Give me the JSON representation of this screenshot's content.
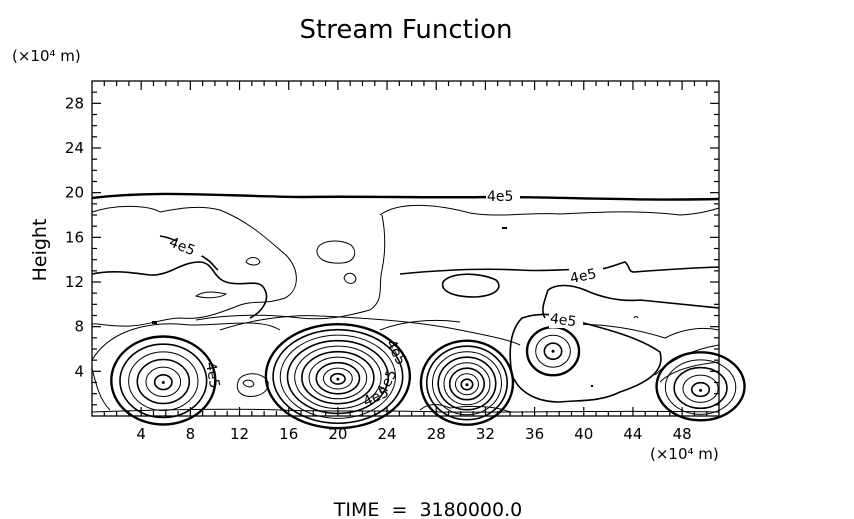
{
  "chart_data": {
    "type": "contour",
    "title": "Stream Function",
    "ylabel": "Height",
    "y_unit": "(×10⁴ m)",
    "x_unit": "(×10⁴ m)",
    "xlim": [
      0,
      51
    ],
    "ylim": [
      0,
      30
    ],
    "x_ticks": [
      4,
      8,
      12,
      16,
      20,
      24,
      28,
      32,
      36,
      40,
      44,
      48
    ],
    "y_ticks": [
      4,
      8,
      12,
      16,
      20,
      24,
      28
    ],
    "contour_labels": [
      "4e5",
      "4e5",
      "4e5",
      "4e5",
      "4e5",
      "4e5",
      "4e5",
      "4e5"
    ],
    "vortices": [
      {
        "x": 5.8,
        "y": 3.0
      },
      {
        "x": 20.0,
        "y": 3.3
      },
      {
        "x": 30.5,
        "y": 2.8
      },
      {
        "x": 37.5,
        "y": 5.8
      },
      {
        "x": 49.5,
        "y": 2.3
      }
    ],
    "footer": "TIME  =  3180000.0"
  }
}
